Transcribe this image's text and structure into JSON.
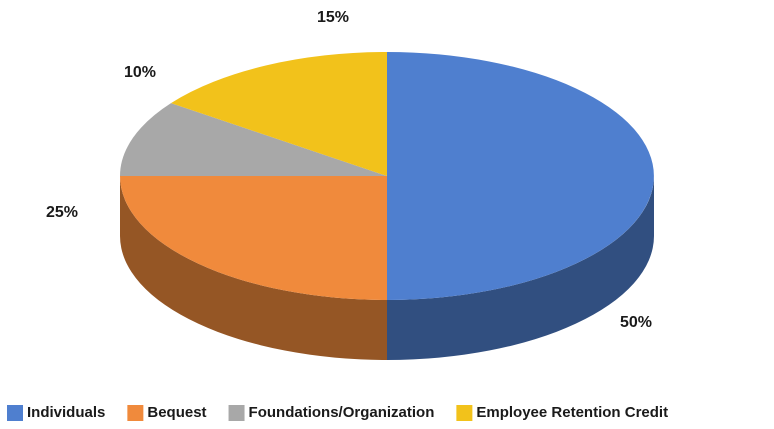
{
  "chart_data": {
    "type": "pie",
    "categories": [
      "Individuals",
      "Bequest",
      "Foundations/Organization",
      "Employee Retention Credit"
    ],
    "values": [
      50,
      25,
      10,
      15
    ],
    "value_labels": [
      "50%",
      "25%",
      "10%",
      "15%"
    ],
    "colors": [
      "#4f7fcf",
      "#f08a3c",
      "#a8a8a8",
      "#f2c21b"
    ],
    "legend": "bottom"
  }
}
